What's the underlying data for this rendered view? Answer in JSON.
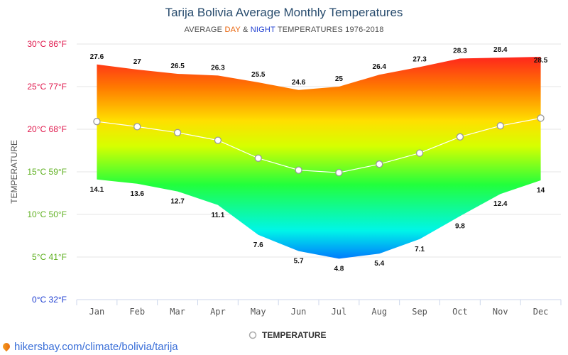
{
  "header": {
    "title": "Tarija Bolivia Average Monthly Temperatures",
    "subtitle_prefix": "AVERAGE ",
    "subtitle_day": "DAY",
    "subtitle_amp": " & ",
    "subtitle_night": "NIGHT",
    "subtitle_suffix": " TEMPERATURES 1976-2018"
  },
  "legend": {
    "label": "TEMPERATURE"
  },
  "watermark": {
    "text": "hikersbay.com/climate/bolivia/tarija"
  },
  "chart_data": {
    "type": "area",
    "ylabel": "TEMPERATURE",
    "ylim": [
      0,
      30
    ],
    "y_ticks": [
      {
        "value": 30,
        "label": "30°C 86°F",
        "color": "#e0194d"
      },
      {
        "value": 25,
        "label": "25°C 77°F",
        "color": "#e0194d"
      },
      {
        "value": 20,
        "label": "20°C 68°F",
        "color": "#e0194d"
      },
      {
        "value": 15,
        "label": "15°C 59°F",
        "color": "#5fb020"
      },
      {
        "value": 10,
        "label": "10°C 50°F",
        "color": "#5fb020"
      },
      {
        "value": 5,
        "label": "5°C 41°F",
        "color": "#5fb020"
      },
      {
        "value": 0,
        "label": "0°C 32°F",
        "color": "#1f3fd1"
      }
    ],
    "categories": [
      "Jan",
      "Feb",
      "Mar",
      "Apr",
      "May",
      "Jun",
      "Jul",
      "Aug",
      "Sep",
      "Oct",
      "Nov",
      "Dec"
    ],
    "day_values": [
      27.6,
      27,
      26.5,
      26.3,
      25.5,
      24.6,
      25,
      26.4,
      27.3,
      28.3,
      28.4,
      28.5
    ],
    "night_values": [
      14.1,
      13.6,
      12.7,
      11.1,
      7.6,
      5.7,
      4.8,
      5.4,
      7.1,
      9.8,
      12.4,
      14
    ],
    "series": [
      {
        "name": "TEMPERATURE",
        "values": [
          20.9,
          20.3,
          19.6,
          18.7,
          16.6,
          15.2,
          14.9,
          15.9,
          17.2,
          19.1,
          20.4,
          21.3
        ]
      }
    ],
    "grid": true,
    "legend_position": "bottom-center"
  }
}
